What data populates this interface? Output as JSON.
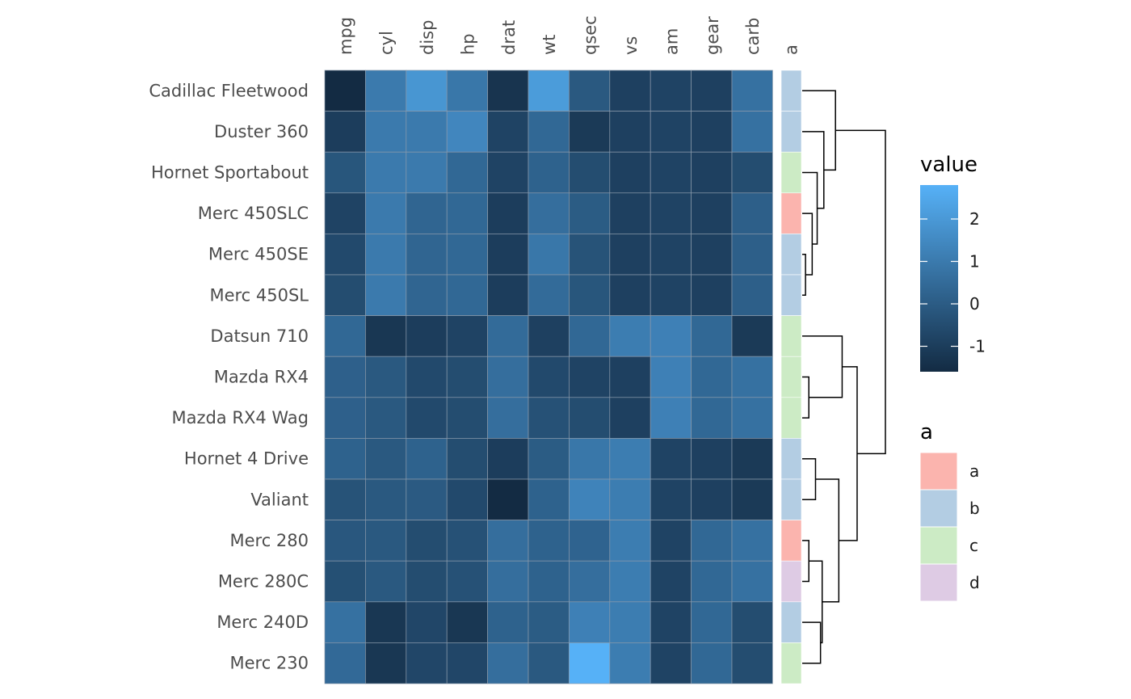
{
  "chart_data": {
    "type": "heatmap",
    "columns": [
      "mpg",
      "cyl",
      "disp",
      "hp",
      "drat",
      "wt",
      "qsec",
      "vs",
      "am",
      "gear",
      "carb"
    ],
    "rows": [
      "Cadillac Fleetwood",
      "Duster 360",
      "Hornet Sportabout",
      "Merc 450SLC",
      "Merc 450SE",
      "Merc 450SL",
      "Datsun 710",
      "Mazda RX4",
      "Mazda RX4 Wag",
      "Hornet 4 Drive",
      "Valiant",
      "Merc 280",
      "Merc 280C",
      "Merc 240D",
      "Merc 230"
    ],
    "values": [
      [
        -1.6,
        1.0,
        1.9,
        0.9,
        -1.3,
        2.1,
        -0.1,
        -0.9,
        -0.8,
        -0.9,
        0.7
      ],
      [
        -1.0,
        1.0,
        1.0,
        1.4,
        -0.8,
        0.4,
        -1.1,
        -0.9,
        -0.8,
        -0.9,
        0.7
      ],
      [
        -0.2,
        1.0,
        1.0,
        0.4,
        -0.8,
        0.2,
        -0.5,
        -0.9,
        -0.8,
        -0.9,
        -0.5
      ],
      [
        -0.8,
        1.0,
        0.3,
        0.4,
        -1.0,
        0.6,
        0.0,
        -0.9,
        -0.8,
        -0.9,
        0.1
      ],
      [
        -0.6,
        1.0,
        0.3,
        0.4,
        -1.0,
        0.9,
        -0.3,
        -0.9,
        -0.8,
        -0.9,
        0.1
      ],
      [
        -0.5,
        1.0,
        0.3,
        0.4,
        -1.0,
        0.5,
        -0.2,
        -0.9,
        -0.8,
        -0.9,
        0.1
      ],
      [
        0.4,
        -1.2,
        -1.0,
        -0.8,
        0.5,
        -0.9,
        0.4,
        1.1,
        1.2,
        0.4,
        -1.1
      ],
      [
        0.15,
        -0.1,
        -0.6,
        -0.5,
        0.6,
        -0.6,
        -0.8,
        -0.9,
        1.2,
        0.4,
        0.7
      ],
      [
        0.15,
        -0.1,
        -0.6,
        -0.5,
        0.6,
        -0.35,
        -0.5,
        -0.9,
        1.2,
        0.4,
        0.7
      ],
      [
        0.2,
        -0.1,
        0.2,
        -0.5,
        -1.0,
        -0.0,
        0.9,
        1.1,
        -0.8,
        -0.9,
        -1.1
      ],
      [
        -0.3,
        -0.1,
        -0.05,
        -0.6,
        -1.6,
        0.2,
        1.3,
        1.1,
        -0.8,
        -0.9,
        -1.1
      ],
      [
        -0.15,
        -0.1,
        -0.5,
        -0.35,
        0.6,
        0.2,
        0.25,
        1.1,
        -0.8,
        0.4,
        0.7
      ],
      [
        -0.4,
        -0.1,
        -0.5,
        -0.35,
        0.6,
        0.2,
        0.6,
        1.1,
        -0.8,
        0.4,
        0.7
      ],
      [
        0.7,
        -1.2,
        -0.7,
        -1.2,
        0.2,
        -0.0,
        1.2,
        1.1,
        -0.8,
        0.4,
        -0.5
      ],
      [
        0.45,
        -1.2,
        -0.7,
        -0.7,
        0.6,
        -0.1,
        2.8,
        1.1,
        -0.8,
        0.4,
        -0.5
      ]
    ],
    "annotation": {
      "title": "a",
      "groups": [
        "b",
        "b",
        "c",
        "a",
        "b",
        "b",
        "c",
        "c",
        "c",
        "b",
        "b",
        "a",
        "d",
        "b",
        "c"
      ]
    },
    "colorbar": {
      "title": "value",
      "ticks": [
        "2",
        "1",
        "0",
        "-1"
      ],
      "tick_values": [
        2,
        1,
        0,
        -1
      ],
      "range": [
        -1.6,
        2.8
      ],
      "low_color": "#132B43",
      "high_color": "#56B1F7"
    },
    "group_legend": {
      "title": "a",
      "items": [
        {
          "label": "a",
          "color": "#FBB4AE"
        },
        {
          "label": "b",
          "color": "#B3CDE3"
        },
        {
          "label": "c",
          "color": "#CCEBC5"
        },
        {
          "label": "d",
          "color": "#DECBE4"
        }
      ]
    },
    "dendrogram": {
      "side": "right",
      "merges": [
        [
          -5,
          -6,
          0.2
        ],
        [
          -4,
          1,
          0.6
        ],
        [
          -3,
          2,
          0.9
        ],
        [
          -2,
          3,
          1.3
        ],
        [
          -1,
          4,
          2.0
        ],
        [
          -8,
          -9,
          0.4
        ],
        [
          -7,
          6,
          2.4
        ],
        [
          -10,
          -11,
          0.8
        ],
        [
          -12,
          -13,
          0.4
        ],
        [
          -14,
          -15,
          1.1
        ],
        [
          9,
          10,
          1.2
        ],
        [
          8,
          11,
          2.2
        ],
        [
          7,
          12,
          3.3
        ],
        [
          5,
          13,
          5.0
        ]
      ]
    }
  }
}
